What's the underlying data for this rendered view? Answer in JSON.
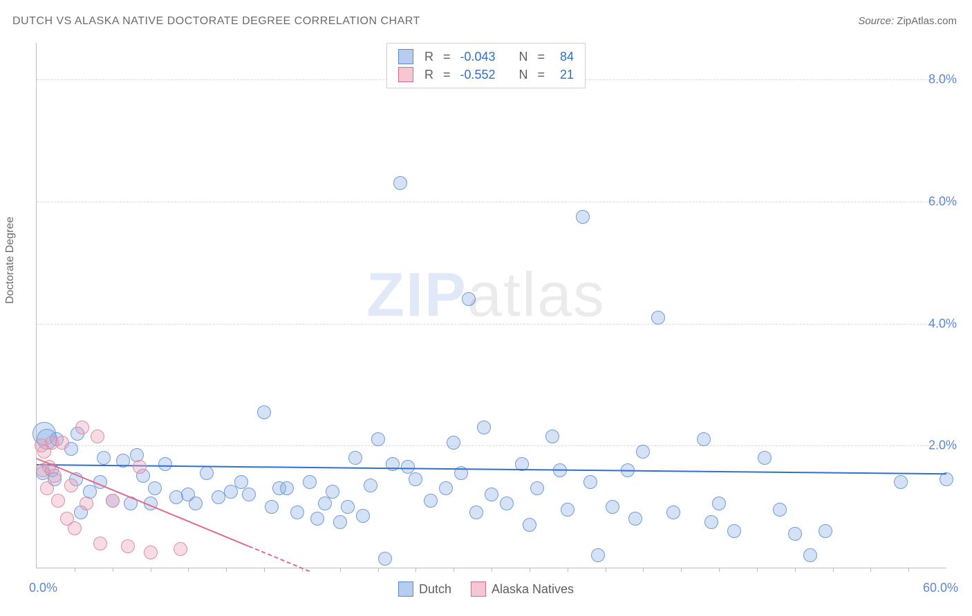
{
  "title": "DUTCH VS ALASKA NATIVE DOCTORATE DEGREE CORRELATION CHART",
  "source_label": "Source:",
  "source_value": "ZipAtlas.com",
  "y_axis_title": "Doctorate Degree",
  "watermark_bold": "ZIP",
  "watermark_rest": "atlas",
  "chart": {
    "type": "scatter",
    "background_color": "#ffffff",
    "axis_color": "#bdbdbd",
    "grid_color": "#d9d9d9",
    "axis_label_color": "#5a87d6",
    "title_color": "#6b6b6b",
    "title_fontsize": 16,
    "axis_tick_label_fontsize": 18,
    "xlim": [
      0,
      60
    ],
    "ylim": [
      0,
      8.6
    ],
    "x_origin_label": "0.0%",
    "x_max_label": "60.0%",
    "xticks_minor": [
      2.5,
      5,
      7.5,
      10,
      12.5,
      15,
      17.5,
      20,
      22.5,
      25,
      27.5,
      30,
      32.5,
      35,
      37.5,
      40,
      42.5,
      45,
      47.5,
      50,
      52.5,
      55,
      57.5
    ],
    "yticks": [
      {
        "value": 2.0,
        "label": "2.0%"
      },
      {
        "value": 4.0,
        "label": "4.0%"
      },
      {
        "value": 6.0,
        "label": "6.0%"
      },
      {
        "value": 8.0,
        "label": "8.0%"
      }
    ],
    "legend_series": [
      {
        "label": "Dutch",
        "swatch_fill": "#b7cdef",
        "swatch_border": "#5a87d6"
      },
      {
        "label": "Alaska Natives",
        "swatch_fill": "#f6c7d2",
        "swatch_border": "#d76a8a"
      }
    ],
    "corr_box": {
      "border_color": "#cfcfcf",
      "rows": [
        {
          "swatch_fill": "#b7cdef",
          "swatch_border": "#5a87d6",
          "r_label": "R",
          "r_value": "-0.043",
          "n_label": "N",
          "n_value": "84"
        },
        {
          "swatch_fill": "#f6c7d2",
          "swatch_border": "#d76a8a",
          "r_label": "R",
          "r_value": "-0.552",
          "n_label": "N",
          "n_value": "21"
        }
      ],
      "value_color": "#2f6fd0",
      "text_color": "#5e5e5e",
      "text_fontsize": 18
    },
    "series": [
      {
        "name": "Dutch",
        "marker_fill": "rgba(135,172,230,0.35)",
        "marker_border": "#6f9bdc",
        "marker_radius": 9,
        "trend": {
          "color": "#2f6fd0",
          "width": 2,
          "x1": 0,
          "y1": 1.7,
          "x2": 60,
          "y2": 1.55,
          "dash_from_x": null
        },
        "points": [
          {
            "x": 0.4,
            "y": 1.55
          },
          {
            "x": 0.5,
            "y": 2.2,
            "r": 16
          },
          {
            "x": 0.7,
            "y": 2.1,
            "r": 14
          },
          {
            "x": 1.0,
            "y": 1.6
          },
          {
            "x": 1.2,
            "y": 1.45
          },
          {
            "x": 1.3,
            "y": 2.1
          },
          {
            "x": 2.3,
            "y": 1.95
          },
          {
            "x": 2.6,
            "y": 1.45
          },
          {
            "x": 2.7,
            "y": 2.2
          },
          {
            "x": 2.9,
            "y": 0.9
          },
          {
            "x": 3.5,
            "y": 1.25
          },
          {
            "x": 4.2,
            "y": 1.4
          },
          {
            "x": 4.4,
            "y": 1.8
          },
          {
            "x": 5.0,
            "y": 1.1
          },
          {
            "x": 5.7,
            "y": 1.75
          },
          {
            "x": 6.2,
            "y": 1.05
          },
          {
            "x": 6.6,
            "y": 1.85
          },
          {
            "x": 7.0,
            "y": 1.5
          },
          {
            "x": 7.5,
            "y": 1.05
          },
          {
            "x": 7.8,
            "y": 1.3
          },
          {
            "x": 8.5,
            "y": 1.7
          },
          {
            "x": 9.2,
            "y": 1.15
          },
          {
            "x": 10.0,
            "y": 1.2
          },
          {
            "x": 10.5,
            "y": 1.05
          },
          {
            "x": 11.2,
            "y": 1.55
          },
          {
            "x": 12.0,
            "y": 1.15
          },
          {
            "x": 12.8,
            "y": 1.25
          },
          {
            "x": 13.5,
            "y": 1.4
          },
          {
            "x": 14.0,
            "y": 1.2
          },
          {
            "x": 15.0,
            "y": 2.55
          },
          {
            "x": 15.5,
            "y": 1.0
          },
          {
            "x": 16.0,
            "y": 1.3
          },
          {
            "x": 16.5,
            "y": 1.3
          },
          {
            "x": 17.2,
            "y": 0.9
          },
          {
            "x": 18.0,
            "y": 1.4
          },
          {
            "x": 18.5,
            "y": 0.8
          },
          {
            "x": 19.0,
            "y": 1.05
          },
          {
            "x": 19.5,
            "y": 1.25
          },
          {
            "x": 20.0,
            "y": 0.75
          },
          {
            "x": 20.5,
            "y": 1.0
          },
          {
            "x": 21.0,
            "y": 1.8
          },
          {
            "x": 21.5,
            "y": 0.85
          },
          {
            "x": 22.0,
            "y": 1.35
          },
          {
            "x": 22.5,
            "y": 2.1
          },
          {
            "x": 23.0,
            "y": 0.15
          },
          {
            "x": 23.5,
            "y": 1.7
          },
          {
            "x": 24.0,
            "y": 6.3
          },
          {
            "x": 24.5,
            "y": 1.65
          },
          {
            "x": 25.0,
            "y": 1.45
          },
          {
            "x": 26.0,
            "y": 1.1
          },
          {
            "x": 27.0,
            "y": 1.3
          },
          {
            "x": 27.5,
            "y": 2.05
          },
          {
            "x": 28.0,
            "y": 1.55
          },
          {
            "x": 28.5,
            "y": 4.4
          },
          {
            "x": 29.0,
            "y": 0.9
          },
          {
            "x": 29.5,
            "y": 2.3
          },
          {
            "x": 30.0,
            "y": 1.2
          },
          {
            "x": 31.0,
            "y": 1.05
          },
          {
            "x": 32.0,
            "y": 1.7
          },
          {
            "x": 32.5,
            "y": 0.7
          },
          {
            "x": 33.0,
            "y": 1.3
          },
          {
            "x": 34.0,
            "y": 2.15
          },
          {
            "x": 34.5,
            "y": 1.6
          },
          {
            "x": 35.0,
            "y": 0.95
          },
          {
            "x": 36.0,
            "y": 5.75
          },
          {
            "x": 36.5,
            "y": 1.4
          },
          {
            "x": 37.0,
            "y": 0.2
          },
          {
            "x": 38.0,
            "y": 1.0
          },
          {
            "x": 39.0,
            "y": 1.6
          },
          {
            "x": 39.5,
            "y": 0.8
          },
          {
            "x": 40.0,
            "y": 1.9
          },
          {
            "x": 41.0,
            "y": 4.1
          },
          {
            "x": 42.0,
            "y": 0.9
          },
          {
            "x": 44.0,
            "y": 2.1
          },
          {
            "x": 44.5,
            "y": 0.75
          },
          {
            "x": 45.0,
            "y": 1.05
          },
          {
            "x": 46.0,
            "y": 0.6
          },
          {
            "x": 48.0,
            "y": 1.8
          },
          {
            "x": 49.0,
            "y": 0.95
          },
          {
            "x": 50.0,
            "y": 0.55
          },
          {
            "x": 51.0,
            "y": 0.2
          },
          {
            "x": 52.0,
            "y": 0.6
          },
          {
            "x": 57.0,
            "y": 1.4
          },
          {
            "x": 60.0,
            "y": 1.45
          }
        ]
      },
      {
        "name": "Alaska Natives",
        "marker_fill": "rgba(236,154,178,0.35)",
        "marker_border": "#e08ca6",
        "marker_radius": 9,
        "trend": {
          "color": "#e06a8a",
          "width": 2,
          "x1": 0,
          "y1": 1.8,
          "x2": 18,
          "y2": -0.05,
          "dash_from_x": 14
        },
        "points": [
          {
            "x": 0.3,
            "y": 2.0
          },
          {
            "x": 0.4,
            "y": 1.6
          },
          {
            "x": 0.5,
            "y": 1.9
          },
          {
            "x": 0.7,
            "y": 1.3
          },
          {
            "x": 0.8,
            "y": 1.65
          },
          {
            "x": 1.0,
            "y": 2.05
          },
          {
            "x": 1.2,
            "y": 1.5
          },
          {
            "x": 1.4,
            "y": 1.1
          },
          {
            "x": 1.7,
            "y": 2.05
          },
          {
            "x": 2.0,
            "y": 0.8
          },
          {
            "x": 2.3,
            "y": 1.35
          },
          {
            "x": 2.5,
            "y": 0.65
          },
          {
            "x": 3.0,
            "y": 2.3
          },
          {
            "x": 3.3,
            "y": 1.05
          },
          {
            "x": 4.0,
            "y": 2.15
          },
          {
            "x": 4.2,
            "y": 0.4
          },
          {
            "x": 5.0,
            "y": 1.1
          },
          {
            "x": 6.0,
            "y": 0.35
          },
          {
            "x": 6.8,
            "y": 1.65
          },
          {
            "x": 7.5,
            "y": 0.25
          },
          {
            "x": 9.5,
            "y": 0.3
          }
        ]
      }
    ]
  }
}
